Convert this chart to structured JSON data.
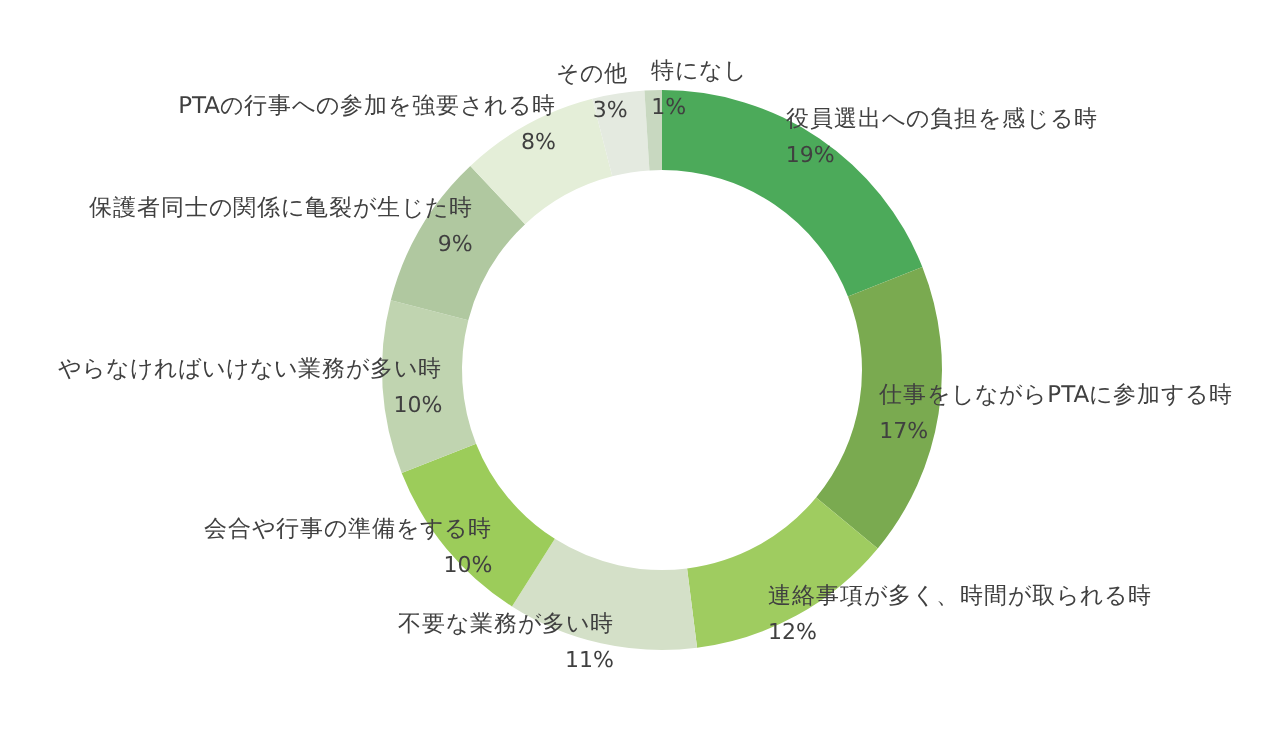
{
  "chart_data": {
    "type": "donut",
    "categories": [
      "役員選出への負担を感じる時",
      "仕事をしながらPTAに参加する時",
      "連絡事項が多く、時間が取られる時",
      "不要な業務が多い時",
      "会合や行事の準備をする時",
      "やらなければいけない業務が多い時",
      "保護者同士の関係に亀裂が生じた時",
      "PTAの行事への参加を強要される時",
      "その他",
      "特になし"
    ],
    "values": [
      19,
      17,
      12,
      11,
      10,
      10,
      9,
      8,
      3,
      1
    ],
    "value_labels": [
      "19%",
      "17%",
      "12%",
      "11%",
      "10%",
      "10%",
      "9%",
      "8%",
      "3%",
      "1%"
    ],
    "colors": [
      "#4caa5a",
      "#7aaa50",
      "#9fcc60",
      "#d4e0c8",
      "#9ccc5a",
      "#c0d4b0",
      "#b0c8a0",
      "#e4eed8",
      "#e4eae0",
      "#c8d8c0"
    ],
    "legend": false
  }
}
